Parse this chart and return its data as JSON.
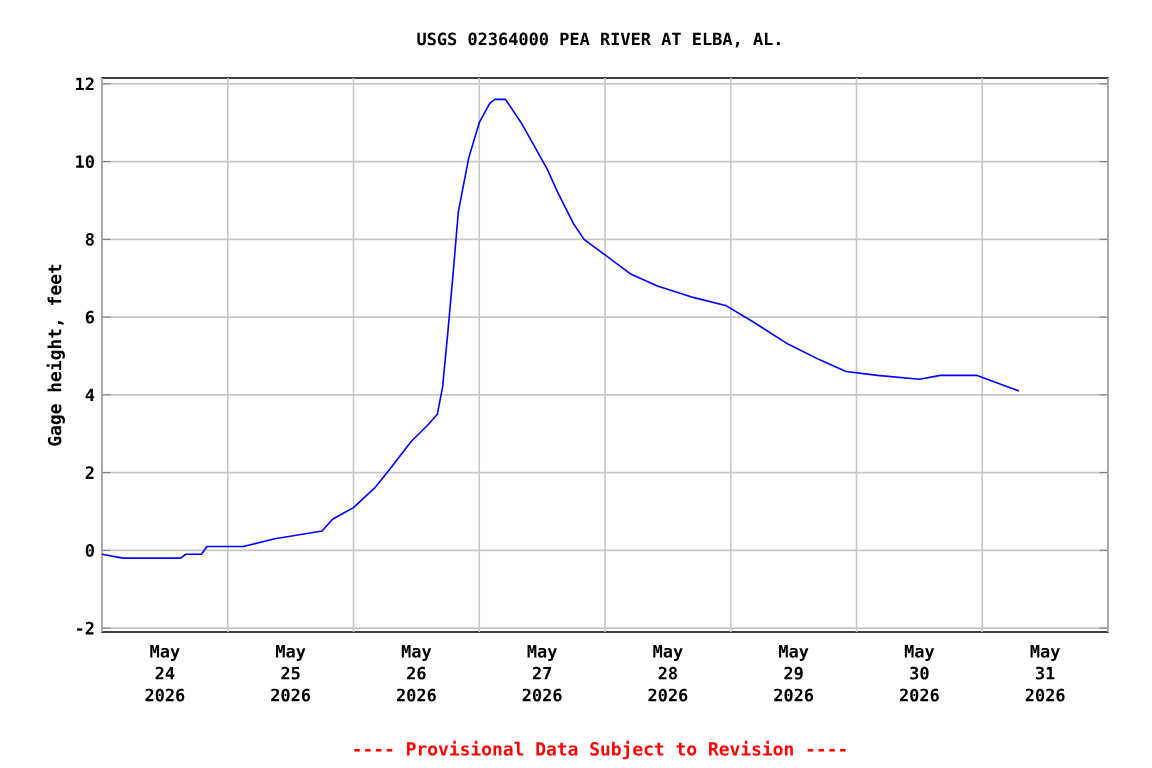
{
  "chart_data": {
    "type": "line",
    "title": "USGS 02364000 PEA RIVER AT ELBA, AL.",
    "ylabel": "Gage height, feet",
    "annotations": [
      "---- Provisional Data Subject to Revision ----"
    ],
    "grid": true,
    "marker": "none",
    "line_style": "solid",
    "xlim": [
      "2026-05-24T00:00",
      "2026-06-01T00:00"
    ],
    "xticks": [
      {
        "value": "2026-05-24T00:00",
        "label": null
      },
      {
        "value": "2026-05-25T00:00",
        "label": null
      },
      {
        "value": "2026-05-26T00:00",
        "label": null
      },
      {
        "value": "2026-05-27T00:00",
        "label": null
      },
      {
        "value": "2026-05-28T00:00",
        "label": null
      },
      {
        "value": "2026-05-29T00:00",
        "label": null
      },
      {
        "value": "2026-05-30T00:00",
        "label": null
      },
      {
        "value": "2026-05-31T00:00",
        "label": null
      },
      {
        "value": "2026-06-01T00:00",
        "label": null
      },
      {
        "value": "2026-05-24T12:00",
        "label": "May 24 2026"
      },
      {
        "value": "2026-05-25T12:00",
        "label": "May 25 2026"
      },
      {
        "value": "2026-05-26T12:00",
        "label": "May 26 2026"
      },
      {
        "value": "2026-05-27T12:00",
        "label": "May 27 2026"
      },
      {
        "value": "2026-05-28T12:00",
        "label": "May 28 2026"
      },
      {
        "value": "2026-05-29T12:00",
        "label": "May 29 2026"
      },
      {
        "value": "2026-05-30T12:00",
        "label": "May 30 2026"
      },
      {
        "value": "2026-05-31T12:00",
        "label": "May 31 2026"
      }
    ],
    "ylim": [
      -2.1,
      12.15
    ],
    "yticks": [
      -2,
      0,
      2,
      4,
      6,
      8,
      10,
      12
    ],
    "x": [
      "2026-05-24T00:00",
      "2026-05-24T04:00",
      "2026-05-24T09:00",
      "2026-05-24T15:00",
      "2026-05-24T16:00",
      "2026-05-24T19:00",
      "2026-05-24T20:00",
      "2026-05-25T03:00",
      "2026-05-25T09:00",
      "2026-05-25T18:00",
      "2026-05-25T20:00",
      "2026-05-26T00:00",
      "2026-05-26T04:00",
      "2026-05-26T07:00",
      "2026-05-26T11:00",
      "2026-05-26T14:00",
      "2026-05-26T16:00",
      "2026-05-26T17:00",
      "2026-05-26T18:00",
      "2026-05-26T19:00",
      "2026-05-26T20:00",
      "2026-05-26T22:00",
      "2026-05-27T00:00",
      "2026-05-27T02:00",
      "2026-05-27T03:00",
      "2026-05-27T05:00",
      "2026-05-27T08:00",
      "2026-05-27T13:00",
      "2026-05-27T15:00",
      "2026-05-27T18:00",
      "2026-05-27T20:00",
      "2026-05-28T00:00",
      "2026-05-28T05:00",
      "2026-05-28T10:00",
      "2026-05-28T17:00",
      "2026-05-28T23:00",
      "2026-05-29T04:00",
      "2026-05-29T11:00",
      "2026-05-29T17:00",
      "2026-05-29T22:00",
      "2026-05-30T04:00",
      "2026-05-30T12:00",
      "2026-05-30T16:00",
      "2026-05-30T23:00",
      "2026-05-31T03:00",
      "2026-05-31T07:00"
    ],
    "series": [
      {
        "color": "#0000ff",
        "values": [
          -0.1,
          -0.2,
          -0.2,
          -0.2,
          -0.1,
          -0.1,
          0.1,
          0.1,
          0.3,
          0.5,
          0.8,
          1.1,
          1.6,
          2.1,
          2.8,
          3.2,
          3.5,
          4.2,
          5.6,
          7.1,
          8.7,
          10.1,
          11.0,
          11.5,
          11.6,
          11.6,
          11.0,
          9.8,
          9.2,
          8.4,
          8.0,
          7.6,
          7.1,
          6.8,
          6.5,
          6.3,
          5.9,
          5.3,
          4.9,
          4.6,
          4.5,
          4.4,
          4.5,
          4.5,
          4.3,
          4.1
        ]
      }
    ]
  }
}
